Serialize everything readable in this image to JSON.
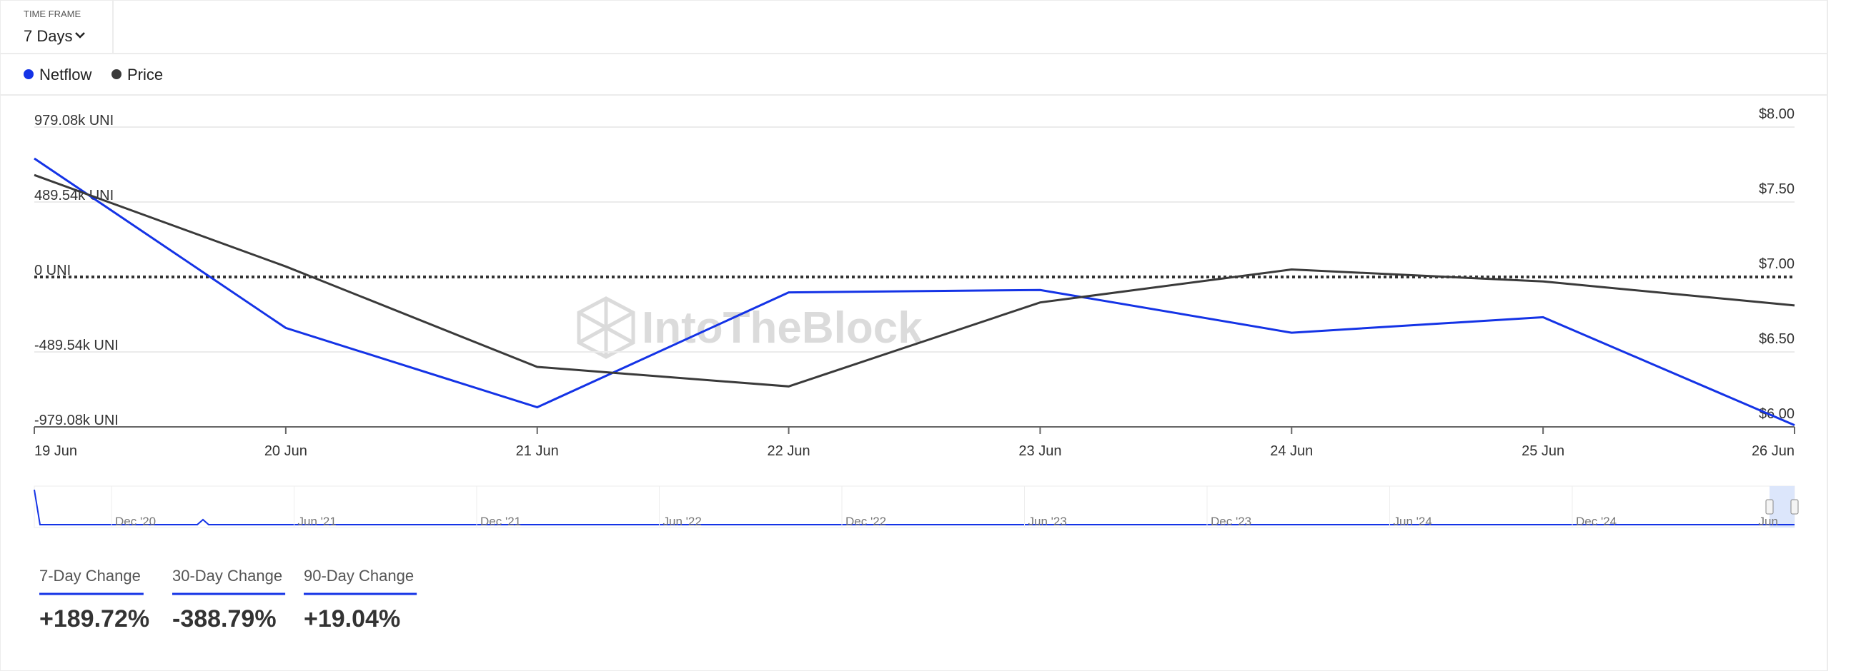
{
  "time_frame": {
    "label": "TIME FRAME",
    "selected": "7 Days"
  },
  "chart_data": {
    "type": "line",
    "categories": [
      "19 Jun",
      "20 Jun",
      "21 Jun",
      "22 Jun",
      "23 Jun",
      "24 Jun",
      "25 Jun",
      "26 Jun"
    ],
    "series": [
      {
        "name": "Netflow",
        "color": "#1433e6",
        "values": [
          774000,
          -333000,
          -851000,
          -101000,
          -85000,
          -364000,
          -263000,
          -968000
        ]
      },
      {
        "name": "Price",
        "color": "#3a3a3a",
        "axis": "y2",
        "values": [
          7.68,
          7.07,
          6.4,
          6.27,
          6.83,
          7.05,
          6.97,
          6.81
        ]
      }
    ],
    "ylim": [
      -979080,
      979080
    ],
    "yticks": [
      {
        "value": 979080,
        "label": "979.08k UNI"
      },
      {
        "value": 489540,
        "label": "489.54k UNI"
      },
      {
        "value": 0,
        "label": "0 UNI"
      },
      {
        "value": -489540,
        "label": "-489.54k UNI"
      },
      {
        "value": -979080,
        "label": "-979.08k UNI"
      }
    ],
    "y2lim": [
      6,
      8
    ],
    "y2ticks": [
      {
        "value": 8,
        "label": "$8.00"
      },
      {
        "value": 7.5,
        "label": "$7.50"
      },
      {
        "value": 7,
        "label": "$7.00"
      },
      {
        "value": 6.5,
        "label": "$6.50"
      },
      {
        "value": 6,
        "label": "$6.00"
      }
    ],
    "grid": true,
    "zero_line": true,
    "watermark": "IntoTheBlock"
  },
  "navigator": {
    "labels": [
      "Dec '20",
      "Jun '21",
      "Dec '21",
      "Jun '22",
      "Dec '22",
      "Jun '23",
      "Dec '23",
      "Jun '24",
      "Dec '24",
      "Jun"
    ]
  },
  "stats": [
    {
      "label": "7-Day Change",
      "value": "+189.72%"
    },
    {
      "label": "30-Day Change",
      "value": "-388.79%"
    },
    {
      "label": "90-Day Change",
      "value": "+19.04%"
    }
  ]
}
